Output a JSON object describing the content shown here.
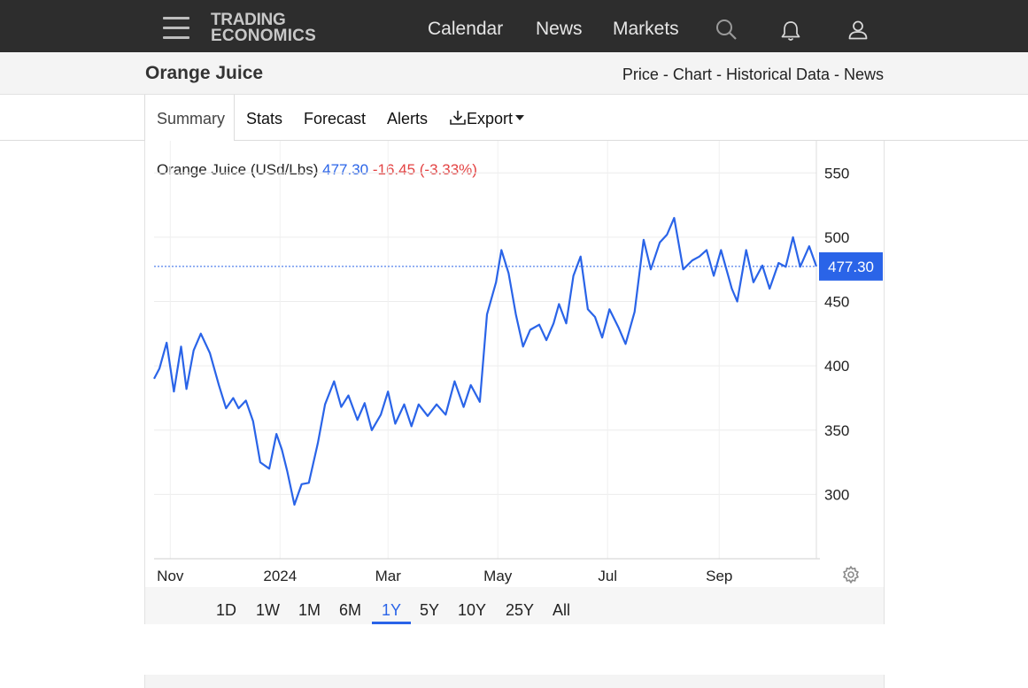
{
  "brand": {
    "line1": "TRADING",
    "line2": "ECONOMICS"
  },
  "nav": {
    "calendar": "Calendar",
    "news": "News",
    "markets": "Markets"
  },
  "header": {
    "title": "Orange Juice",
    "links": {
      "price": "Price",
      "chart": "Chart",
      "historical": "Historical Data",
      "news": "News",
      "sep": " - "
    }
  },
  "tabs": {
    "summary": "Summary",
    "stats": "Stats",
    "forecast": "Forecast",
    "alerts": "Alerts",
    "export": "Export"
  },
  "legend": {
    "name": "Orange Juice (USd/Lbs)",
    "price": "477.30",
    "change": "-16.45 (-3.33%)"
  },
  "ranges": {
    "r1d": "1D",
    "r1w": "1W",
    "r1m": "1M",
    "r6m": "6M",
    "r1y": "1Y",
    "r5y": "5Y",
    "r10y": "10Y",
    "r25y": "25Y",
    "all": "All",
    "selected": "1Y"
  },
  "colors": {
    "line": "#2a64e8",
    "down": "#e34242",
    "navbar": "#2d2d2d"
  },
  "chart_data": {
    "type": "line",
    "title": "",
    "xlabel": "",
    "ylabel": "",
    "ylim": [
      250,
      575
    ],
    "y_ticks": [
      "550",
      "500",
      "450",
      "400",
      "350",
      "300"
    ],
    "y_tick_values": [
      550,
      500,
      450,
      400,
      350,
      300
    ],
    "x_ticks": [
      "Nov",
      "2024",
      "Mar",
      "May",
      "Jul",
      "Sep"
    ],
    "x_tick_dates": [
      "2023-11-01",
      "2024-01-01",
      "2024-03-01",
      "2024-05-01",
      "2024-07-01",
      "2024-09-01"
    ],
    "x_range": [
      "2023-10-23",
      "2024-10-25"
    ],
    "grid": true,
    "last_value": 477.3,
    "last_value_label": "477.30",
    "series": [
      {
        "x": [
          "2023-10-23",
          "2023-10-26",
          "2023-10-30",
          "2023-11-03",
          "2023-11-07",
          "2023-11-10",
          "2023-11-14",
          "2023-11-18",
          "2023-11-23",
          "2023-11-28",
          "2023-12-02",
          "2023-12-06",
          "2023-12-09",
          "2023-12-13",
          "2023-12-17",
          "2023-12-21",
          "2023-12-26",
          "2023-12-30",
          "2024-01-02",
          "2024-01-05",
          "2024-01-09",
          "2024-01-13",
          "2024-01-17",
          "2024-01-22",
          "2024-01-26",
          "2024-01-31",
          "2024-02-04",
          "2024-02-08",
          "2024-02-13",
          "2024-02-17",
          "2024-02-21",
          "2024-02-26",
          "2024-03-01",
          "2024-03-05",
          "2024-03-10",
          "2024-03-14",
          "2024-03-18",
          "2024-03-23",
          "2024-03-28",
          "2024-04-02",
          "2024-04-07",
          "2024-04-12",
          "2024-04-16",
          "2024-04-21",
          "2024-04-25",
          "2024-04-30",
          "2024-05-03",
          "2024-05-07",
          "2024-05-11",
          "2024-05-15",
          "2024-05-19",
          "2024-05-24",
          "2024-05-28",
          "2024-06-01",
          "2024-06-04",
          "2024-06-08",
          "2024-06-12",
          "2024-06-16",
          "2024-06-20",
          "2024-06-24",
          "2024-06-28",
          "2024-07-02",
          "2024-07-07",
          "2024-07-11",
          "2024-07-16",
          "2024-07-21",
          "2024-07-25",
          "2024-07-30",
          "2024-08-03",
          "2024-08-07",
          "2024-08-12",
          "2024-08-17",
          "2024-08-21",
          "2024-08-25",
          "2024-08-29",
          "2024-09-02",
          "2024-09-05",
          "2024-09-08",
          "2024-09-11",
          "2024-09-16",
          "2024-09-20",
          "2024-09-25",
          "2024-09-29",
          "2024-10-04",
          "2024-10-08",
          "2024-10-12",
          "2024-10-16",
          "2024-10-21",
          "2024-10-25"
        ],
        "values": [
          390,
          398,
          418,
          380,
          415,
          382,
          412,
          425,
          410,
          385,
          367,
          375,
          367,
          373,
          357,
          325,
          320,
          347,
          335,
          318,
          292,
          308,
          309,
          340,
          370,
          388,
          368,
          377,
          358,
          371,
          350,
          362,
          380,
          355,
          370,
          353,
          370,
          361,
          370,
          362,
          388,
          368,
          385,
          372,
          440,
          465,
          490,
          472,
          440,
          415,
          428,
          432,
          420,
          433,
          448,
          433,
          470,
          485,
          444,
          438,
          422,
          444,
          430,
          417,
          442,
          498,
          475,
          496,
          502,
          515,
          475,
          482,
          485,
          490,
          470,
          490,
          475,
          460,
          450,
          490,
          465,
          478,
          460,
          480,
          477,
          500,
          477,
          493,
          477.3
        ]
      }
    ]
  }
}
